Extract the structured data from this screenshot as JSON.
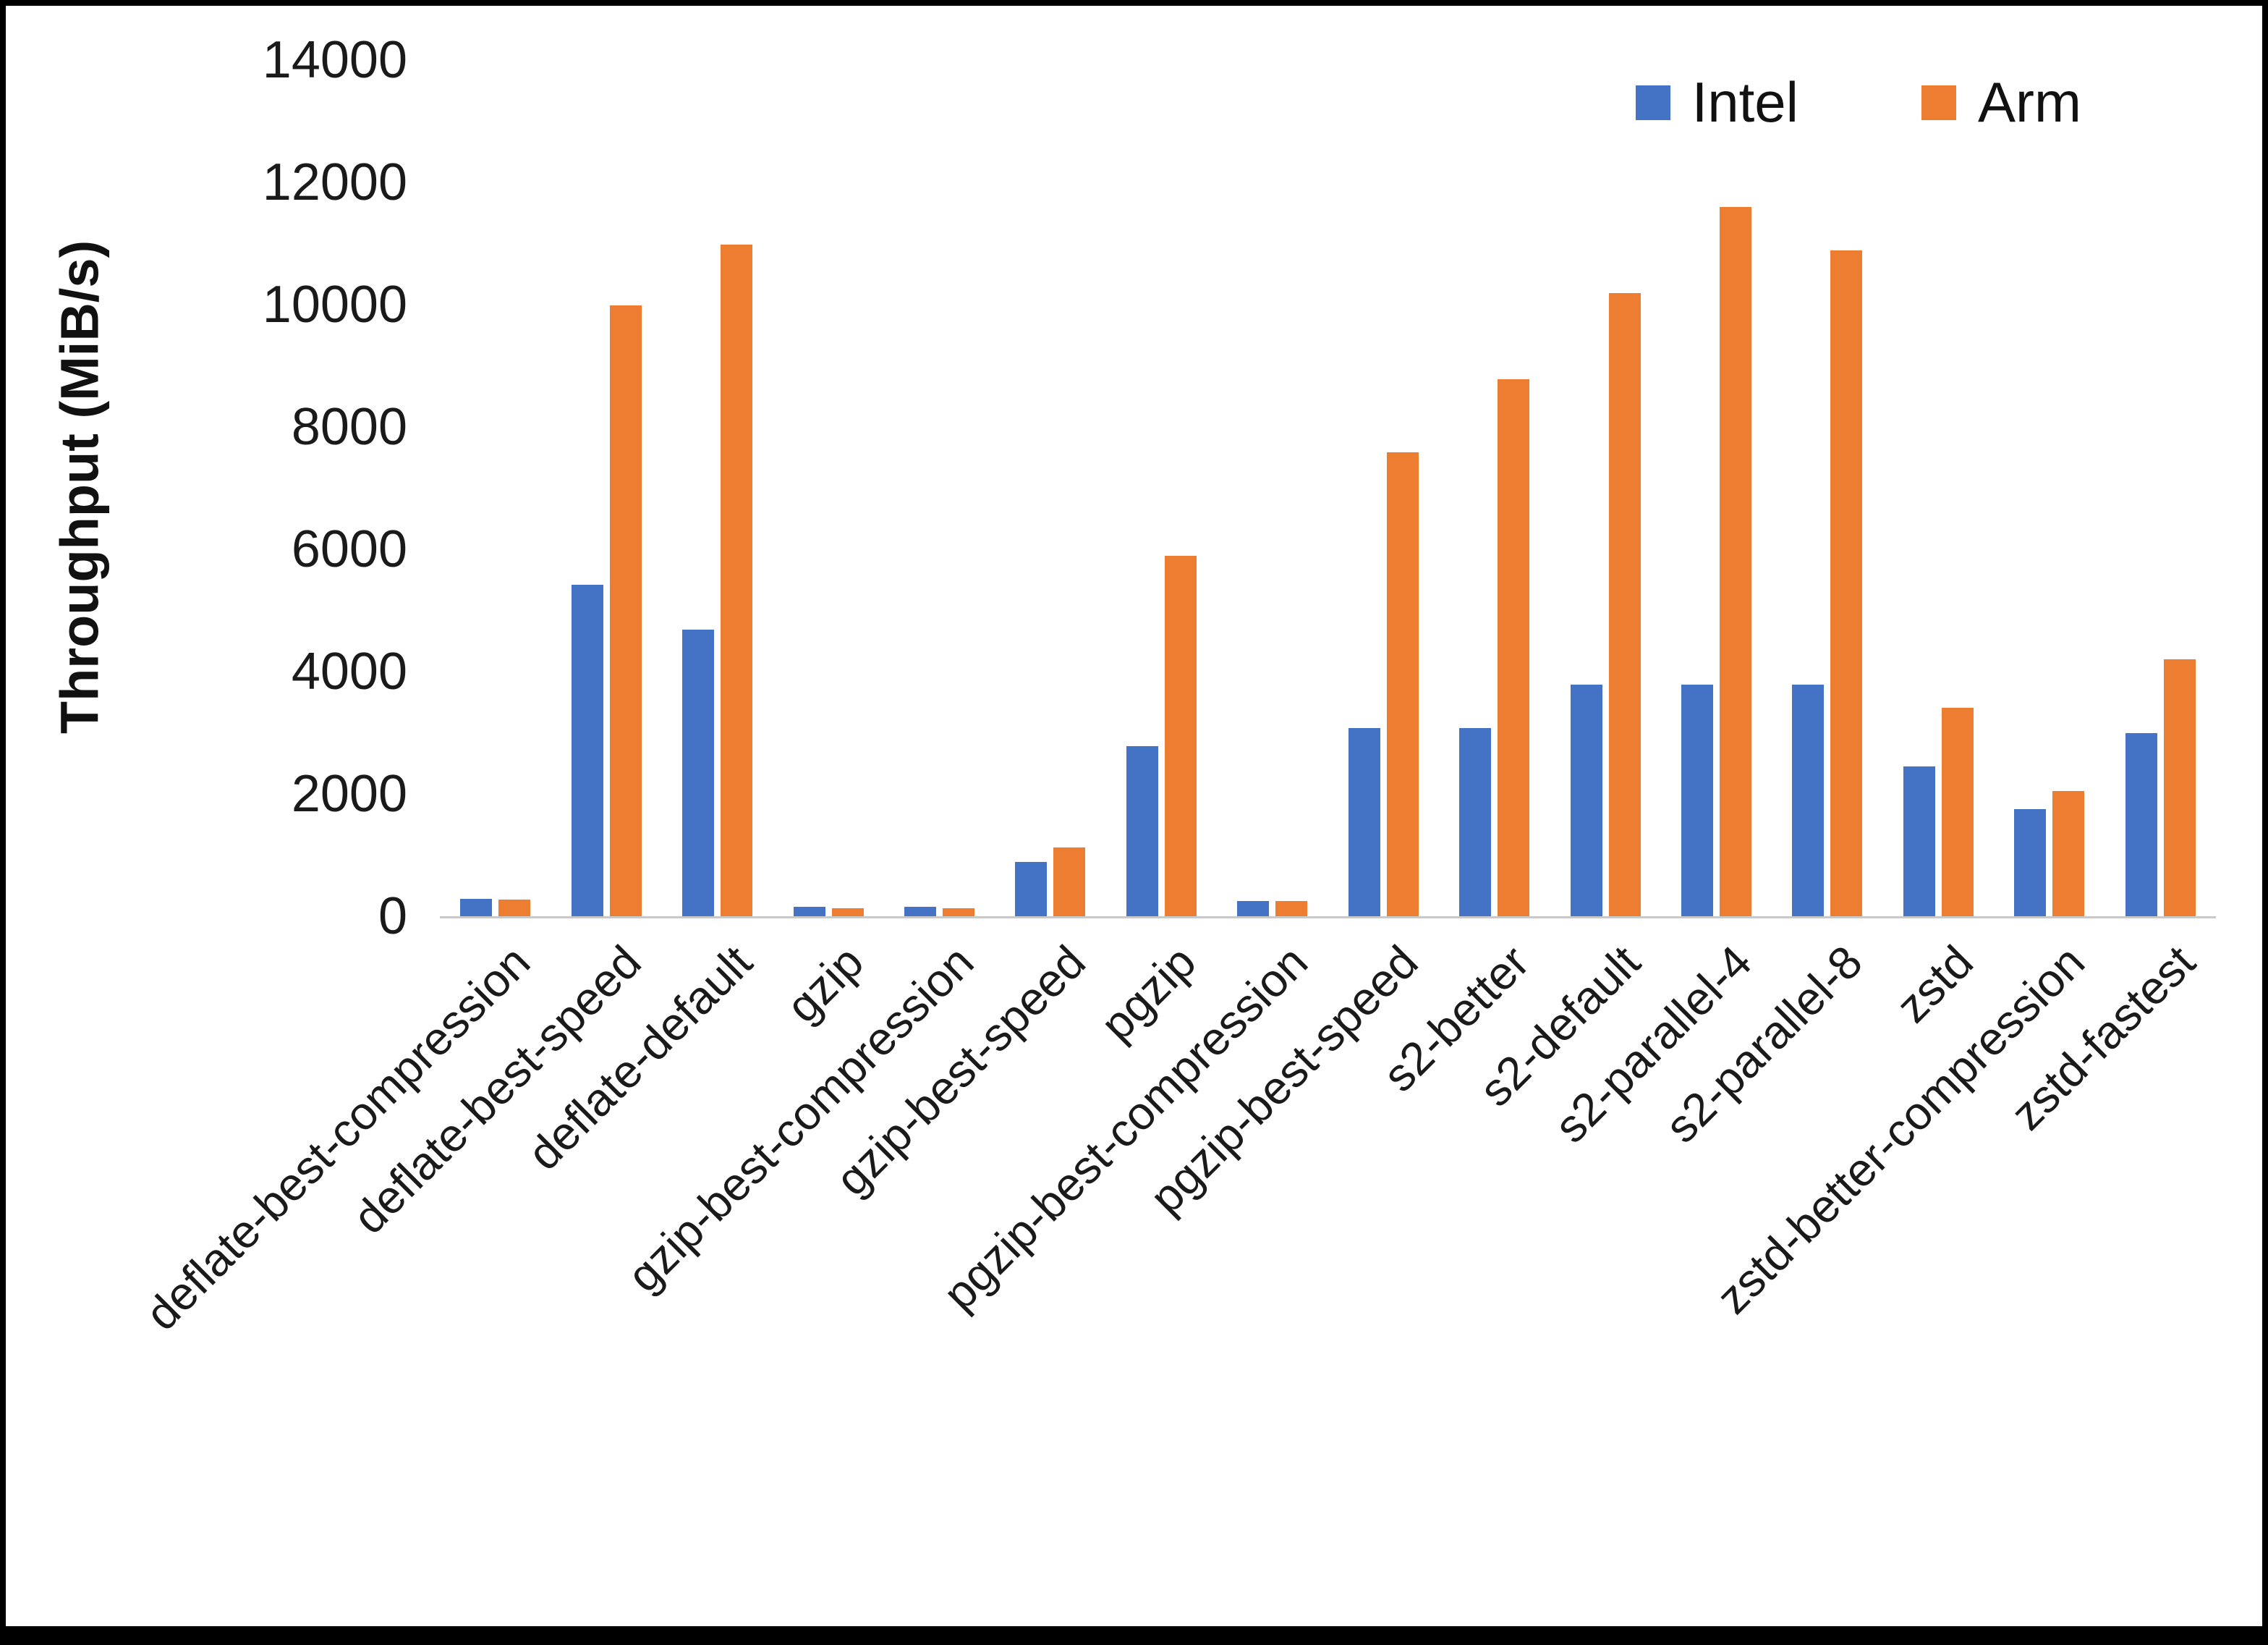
{
  "frame": {
    "background": "#ffffff",
    "border_color": "#000000"
  },
  "chart_data": {
    "type": "bar",
    "title": "",
    "xlabel": "",
    "ylabel": "Throughput (MiB/s)",
    "ylim": [
      0,
      14000
    ],
    "ytick_step": 2000,
    "ytick_labels": [
      "0",
      "2000",
      "4000",
      "6000",
      "8000",
      "10000",
      "12000",
      "14000"
    ],
    "grid": false,
    "legend_position": "top-right",
    "categories": [
      "deflate-best-compression",
      "deflate-best-speed",
      "deflate-default",
      "gzip",
      "gzip-best-compression",
      "gzip-best-speed",
      "pgzip",
      "pgzip-best-compression",
      "pgzip-best-speed",
      "s2-better",
      "s2-default",
      "s2-parallel-4",
      "s2-parallel-8",
      "zstd",
      "zstd-better-compression",
      "zstd-fastest"
    ],
    "series": [
      {
        "name": "Intel",
        "color": "#4472C4",
        "values": [
          280,
          5420,
          4690,
          150,
          150,
          890,
          2780,
          250,
          3080,
          3080,
          3790,
          3790,
          3790,
          2450,
          1750,
          2990
        ]
      },
      {
        "name": "Arm",
        "color": "#ED7D31",
        "values": [
          270,
          9990,
          10980,
          130,
          130,
          1120,
          5890,
          250,
          7580,
          8780,
          10190,
          11600,
          10890,
          3410,
          2050,
          4200
        ]
      }
    ]
  }
}
